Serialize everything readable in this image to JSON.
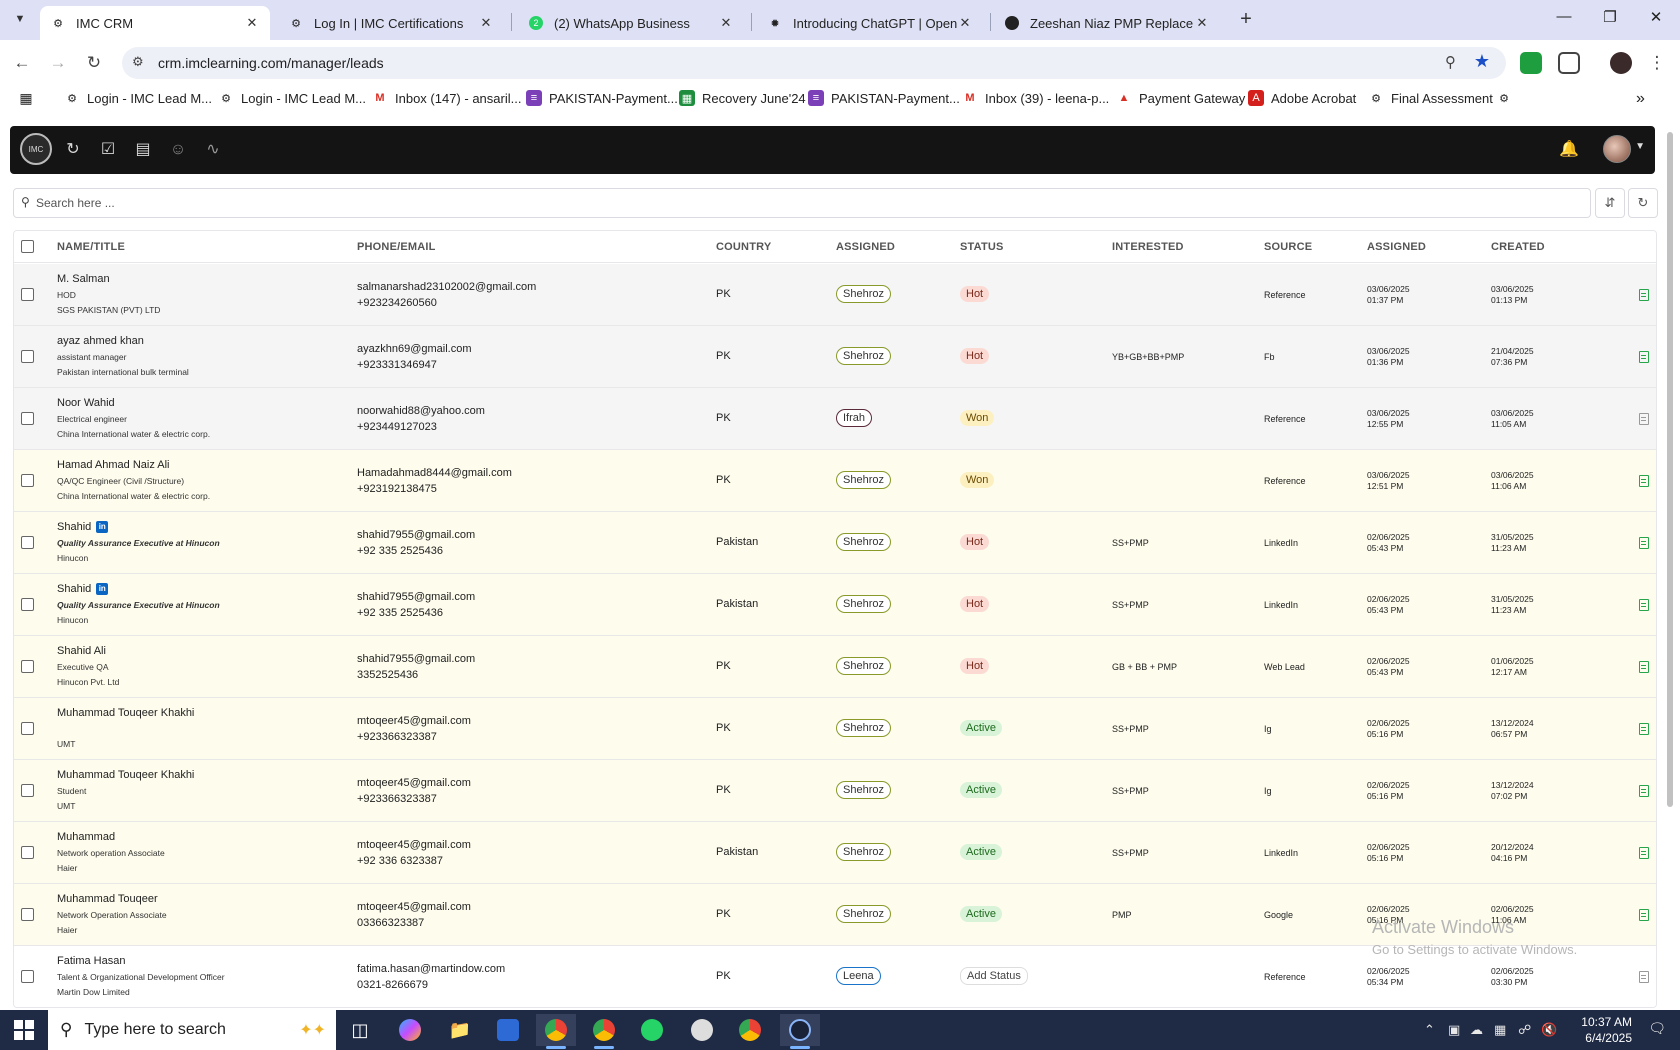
{
  "browser": {
    "tabs": [
      {
        "title": "IMC CRM",
        "active": true
      },
      {
        "title": "Log In | IMC Certifications",
        "active": false
      },
      {
        "title": "(2) WhatsApp Business",
        "active": false
      },
      {
        "title": "Introducing ChatGPT | OpenAI",
        "active": false
      },
      {
        "title": "Zeeshan Niaz PMP Replacemen",
        "active": false
      }
    ],
    "url": "crm.imclearning.com/manager/leads",
    "bookmarks": [
      "Login - IMC Lead M...",
      "Login - IMC Lead M...",
      "Inbox (147) - ansaril...",
      "PAKISTAN-Payment...",
      "Recovery June'24",
      "PAKISTAN-Payment...",
      "Inbox (39) - leena-p...",
      "Payment Gateway",
      "Adobe Acrobat",
      "Final Assessment"
    ]
  },
  "app": {
    "logo_text": "IMC",
    "search_placeholder": "Search here ..."
  },
  "table": {
    "columns": {
      "name": "NAME/TITLE",
      "contact": "PHONE/EMAIL",
      "country": "COUNTRY",
      "assigned_to": "ASSIGNED",
      "status": "STATUS",
      "interested": "INTERESTED",
      "source": "SOURCE",
      "assigned_at": "ASSIGNED",
      "created": "CREATED"
    },
    "rows": [
      {
        "name": "M. Salman",
        "title": "HOD",
        "org": "SGS PAKISTAN (PVT) LTD",
        "email": "salmanarshad23102002@gmail.com",
        "phone": "+923234260560",
        "country": "PK",
        "assigned": "Shehroz",
        "status": "Hot",
        "interested": "",
        "source": "Reference",
        "assigned_date": "03/06/2025",
        "assigned_time": "01:37 PM",
        "created_date": "03/06/2025",
        "created_time": "01:13 PM",
        "linkedin": false,
        "tint": "grey",
        "doc": "green"
      },
      {
        "name": "ayaz ahmed khan",
        "title": "assistant manager",
        "org": "Pakistan international bulk terminal",
        "email": "ayazkhn69@gmail.com",
        "phone": "+923331346947",
        "country": "PK",
        "assigned": "Shehroz",
        "status": "Hot",
        "interested": "YB+GB+BB+PMP",
        "source": "Fb",
        "assigned_date": "03/06/2025",
        "assigned_time": "01:36 PM",
        "created_date": "21/04/2025",
        "created_time": "07:36 PM",
        "linkedin": false,
        "tint": "grey",
        "doc": "green"
      },
      {
        "name": "Noor Wahid",
        "title": "Electrical engineer",
        "org": "China International water & electric corp.",
        "email": "noorwahid88@yahoo.com",
        "phone": "+923449127023",
        "country": "PK",
        "assigned": "Ifrah",
        "status": "Won",
        "interested": "",
        "source": "Reference",
        "assigned_date": "03/06/2025",
        "assigned_time": "12:55 PM",
        "created_date": "03/06/2025",
        "created_time": "11:05 AM",
        "linkedin": false,
        "tint": "grey",
        "doc": "grey"
      },
      {
        "name": "Hamad Ahmad Naiz Ali",
        "title": "QA/QC Engineer (Civil /Structure)",
        "org": "China International water & electric corp.",
        "email": "Hamadahmad8444@gmail.com",
        "phone": "+923192138475",
        "country": "PK",
        "assigned": "Shehroz",
        "status": "Won",
        "interested": "",
        "source": "Reference",
        "assigned_date": "03/06/2025",
        "assigned_time": "12:51 PM",
        "created_date": "03/06/2025",
        "created_time": "11:06 AM",
        "linkedin": false,
        "tint": "yellow",
        "doc": "green"
      },
      {
        "name": "Shahid",
        "title": "Quality Assurance Executive at Hinucon",
        "org": "Hinucon",
        "email": "shahid7955@gmail.com",
        "phone": "+92 335 2525436",
        "country": "Pakistan",
        "assigned": "Shehroz",
        "status": "Hot",
        "interested": "SS+PMP",
        "source": "LinkedIn",
        "assigned_date": "02/06/2025",
        "assigned_time": "05:43 PM",
        "created_date": "31/05/2025",
        "created_time": "11:23 AM",
        "linkedin": true,
        "tint": "yellow",
        "doc": "green"
      },
      {
        "name": "Shahid",
        "title": "Quality Assurance Executive at Hinucon",
        "org": "Hinucon",
        "email": "shahid7955@gmail.com",
        "phone": "+92 335 2525436",
        "country": "Pakistan",
        "assigned": "Shehroz",
        "status": "Hot",
        "interested": "SS+PMP",
        "source": "LinkedIn",
        "assigned_date": "02/06/2025",
        "assigned_time": "05:43 PM",
        "created_date": "31/05/2025",
        "created_time": "11:23 AM",
        "linkedin": true,
        "tint": "yellow",
        "doc": "green"
      },
      {
        "name": "Shahid Ali",
        "title": "Executive QA",
        "org": "Hinucon Pvt. Ltd",
        "email": "shahid7955@gmail.com",
        "phone": "3352525436",
        "country": "PK",
        "assigned": "Shehroz",
        "status": "Hot",
        "interested": "GB + BB + PMP",
        "source": "Web Lead",
        "assigned_date": "02/06/2025",
        "assigned_time": "05:43 PM",
        "created_date": "01/06/2025",
        "created_time": "12:17 AM",
        "linkedin": false,
        "tint": "yellow",
        "doc": "green"
      },
      {
        "name": "Muhammad Touqeer Khakhi",
        "title": "",
        "org": "UMT",
        "email": "mtoqeer45@gmail.com",
        "phone": "+923366323387",
        "country": "PK",
        "assigned": "Shehroz",
        "status": "Active",
        "interested": "SS+PMP",
        "source": "Ig",
        "assigned_date": "02/06/2025",
        "assigned_time": "05:16 PM",
        "created_date": "13/12/2024",
        "created_time": "06:57 PM",
        "linkedin": false,
        "tint": "yellow",
        "doc": "green"
      },
      {
        "name": "Muhammad Touqeer Khakhi",
        "title": "Student",
        "org": "UMT",
        "email": "mtoqeer45@gmail.com",
        "phone": "+923366323387",
        "country": "PK",
        "assigned": "Shehroz",
        "status": "Active",
        "interested": "SS+PMP",
        "source": "Ig",
        "assigned_date": "02/06/2025",
        "assigned_time": "05:16 PM",
        "created_date": "13/12/2024",
        "created_time": "07:02 PM",
        "linkedin": false,
        "tint": "yellow",
        "doc": "green"
      },
      {
        "name": "Muhammad",
        "title": "Network operation Associate",
        "org": "Haier",
        "email": "mtoqeer45@gmail.com",
        "phone": "+92 336 6323387",
        "country": "Pakistan",
        "assigned": "Shehroz",
        "status": "Active",
        "interested": "SS+PMP",
        "source": "LinkedIn",
        "assigned_date": "02/06/2025",
        "assigned_time": "05:16 PM",
        "created_date": "20/12/2024",
        "created_time": "04:16 PM",
        "linkedin": false,
        "tint": "yellow",
        "doc": "green"
      },
      {
        "name": "Muhammad Touqeer",
        "title": "Network Operation Associate",
        "org": "Haier",
        "email": "mtoqeer45@gmail.com",
        "phone": "03366323387",
        "country": "PK",
        "assigned": "Shehroz",
        "status": "Active",
        "interested": "PMP",
        "source": "Google",
        "assigned_date": "02/06/2025",
        "assigned_time": "05:16 PM",
        "created_date": "02/06/2025",
        "created_time": "11:06 AM",
        "linkedin": false,
        "tint": "yellow",
        "doc": "green"
      },
      {
        "name": "Fatima Hasan",
        "title": "Talent & Organizational Development Officer",
        "org": "Martin Dow Limited",
        "email": "fatima.hasan@martindow.com",
        "phone": "0321-8266679",
        "country": "PK",
        "assigned": "Leena",
        "status": "Add Status",
        "interested": "",
        "source": "Reference",
        "assigned_date": "02/06/2025",
        "assigned_time": "05:34 PM",
        "created_date": "02/06/2025",
        "created_time": "03:30 PM",
        "linkedin": false,
        "tint": "white",
        "doc": "grey"
      }
    ]
  },
  "watermark": {
    "line1": "Activate Windows",
    "line2": "Go to Settings to activate Windows."
  },
  "taskbar": {
    "search_text": "Type here to search",
    "time": "10:37 AM",
    "date": "6/4/2025"
  }
}
